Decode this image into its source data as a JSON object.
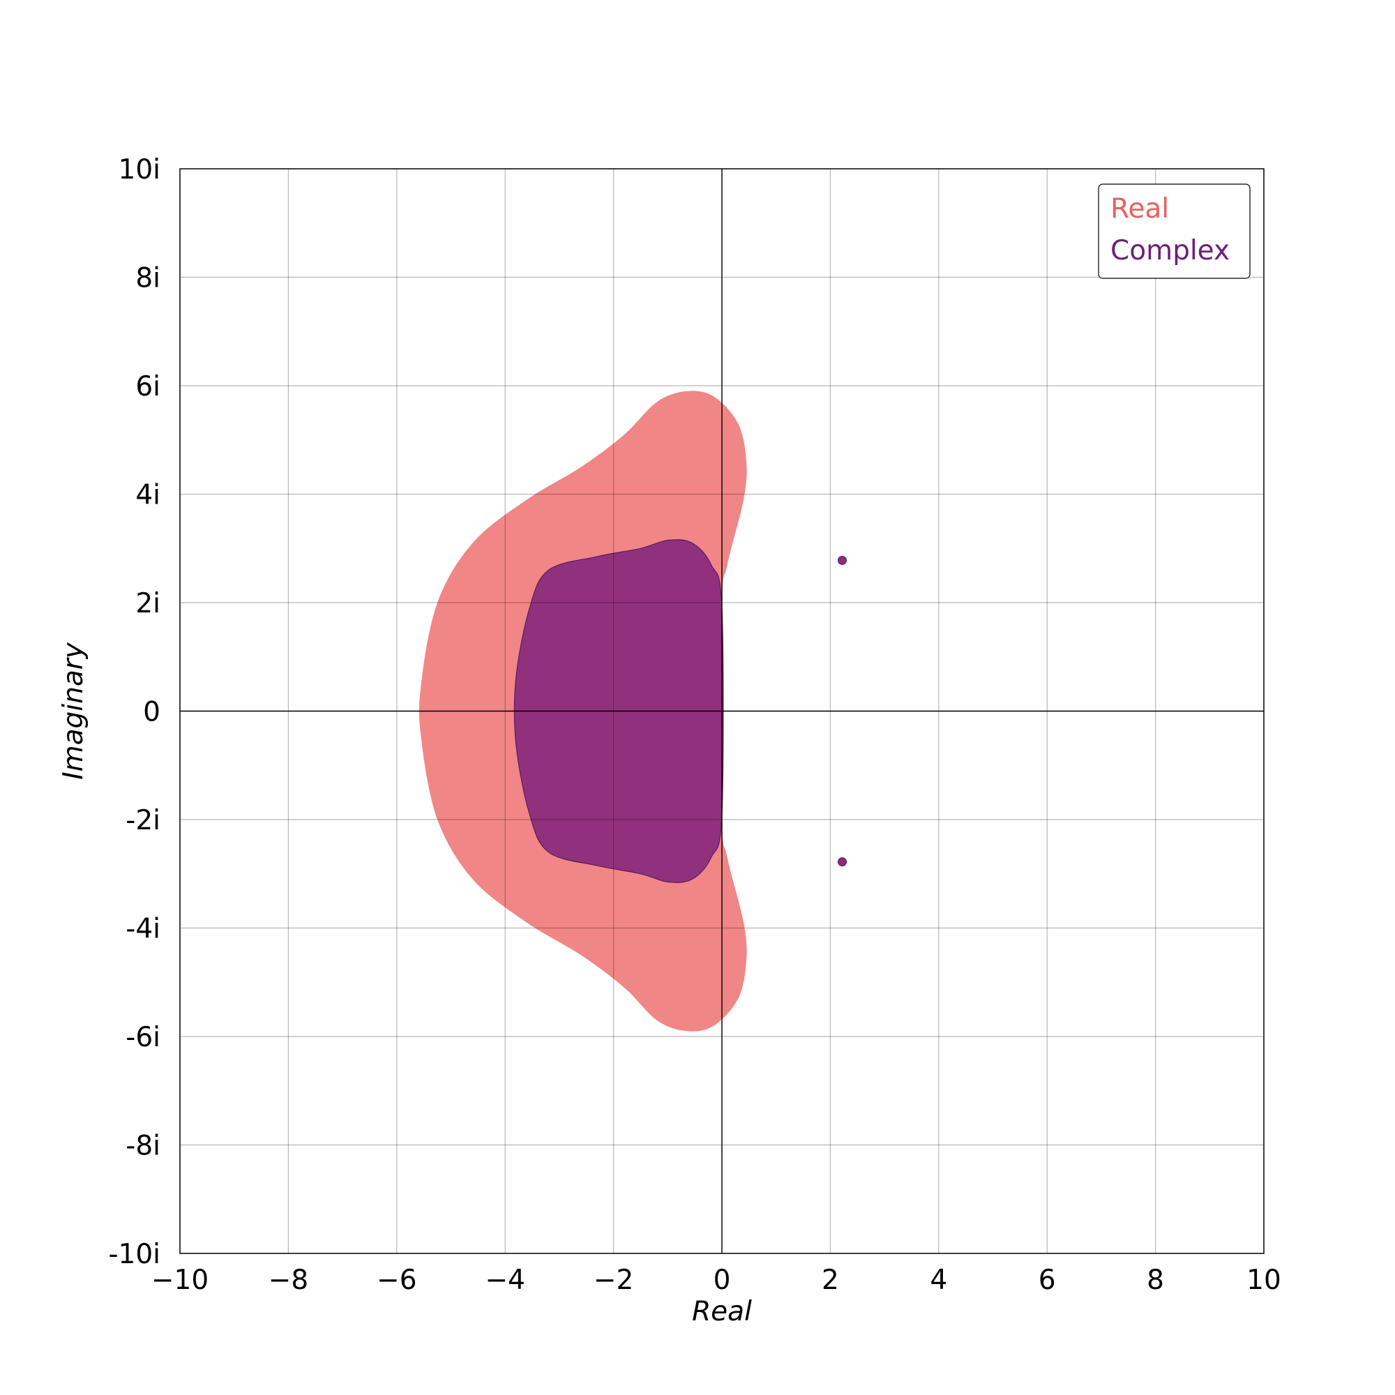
{
  "chart_data": {
    "type": "area",
    "xlabel": "Real",
    "ylabel": "Imaginary",
    "xlim": [
      -10,
      10
    ],
    "ylim": [
      -10,
      10
    ],
    "x_ticks": [
      -10,
      -8,
      -6,
      -4,
      -2,
      0,
      2,
      4,
      6,
      8,
      10
    ],
    "x_tick_labels": [
      "−10",
      "−8",
      "−6",
      "−4",
      "−2",
      "0",
      "2",
      "4",
      "6",
      "8",
      "10"
    ],
    "y_ticks": [
      10,
      8,
      6,
      4,
      2,
      0,
      -2,
      -4,
      -6,
      -8,
      -10
    ],
    "y_tick_labels": [
      "10i",
      "8i",
      "6i",
      "4i",
      "2i",
      "0",
      "-2i",
      "-4i",
      "-6i",
      "-8i",
      "-10i"
    ],
    "grid": true,
    "legend_position": "top-right",
    "series": [
      {
        "name": "Real",
        "kind": "region",
        "color": "#f08080",
        "legend_color": "#e8605f",
        "boundary": [
          [
            0,
            1.9
          ],
          [
            0.1,
            2.7
          ],
          [
            0.4,
            3.9
          ],
          [
            0.45,
            4.6
          ],
          [
            0.3,
            5.3
          ],
          [
            -0.15,
            5.8
          ],
          [
            -0.65,
            5.9
          ],
          [
            -1.2,
            5.7
          ],
          [
            -1.8,
            5.1
          ],
          [
            -2.6,
            4.5
          ],
          [
            -3.6,
            3.9
          ],
          [
            -4.6,
            3.1
          ],
          [
            -5.25,
            2.0
          ],
          [
            -5.55,
            0.5
          ],
          [
            -5.55,
            -0.5
          ],
          [
            -5.25,
            -2.0
          ],
          [
            -4.6,
            -3.1
          ],
          [
            -3.6,
            -3.9
          ],
          [
            -2.6,
            -4.5
          ],
          [
            -1.8,
            -5.1
          ],
          [
            -1.2,
            -5.7
          ],
          [
            -0.65,
            -5.9
          ],
          [
            -0.15,
            -5.8
          ],
          [
            0.3,
            -5.3
          ],
          [
            0.45,
            -4.6
          ],
          [
            0.4,
            -3.9
          ],
          [
            0.1,
            -2.7
          ],
          [
            0,
            -1.9
          ]
        ]
      },
      {
        "name": "Complex",
        "kind": "region",
        "color": "#8b2c7c",
        "legend_color": "#6e1f7a",
        "boundary": [
          [
            0,
            1.9
          ],
          [
            -0.2,
            2.7
          ],
          [
            -0.55,
            3.1
          ],
          [
            -1.0,
            3.15
          ],
          [
            -1.5,
            3.0
          ],
          [
            -2.3,
            2.85
          ],
          [
            -3.2,
            2.6
          ],
          [
            -3.55,
            1.9
          ],
          [
            -3.8,
            0.6
          ],
          [
            -3.8,
            -0.6
          ],
          [
            -3.55,
            -1.9
          ],
          [
            -3.2,
            -2.6
          ],
          [
            -2.3,
            -2.85
          ],
          [
            -1.5,
            -3.0
          ],
          [
            -1.0,
            -3.15
          ],
          [
            -0.55,
            -3.1
          ],
          [
            -0.2,
            -2.7
          ],
          [
            0,
            -1.9
          ]
        ],
        "points": [
          [
            2.22,
            2.78
          ],
          [
            2.22,
            -2.78
          ]
        ]
      }
    ]
  }
}
